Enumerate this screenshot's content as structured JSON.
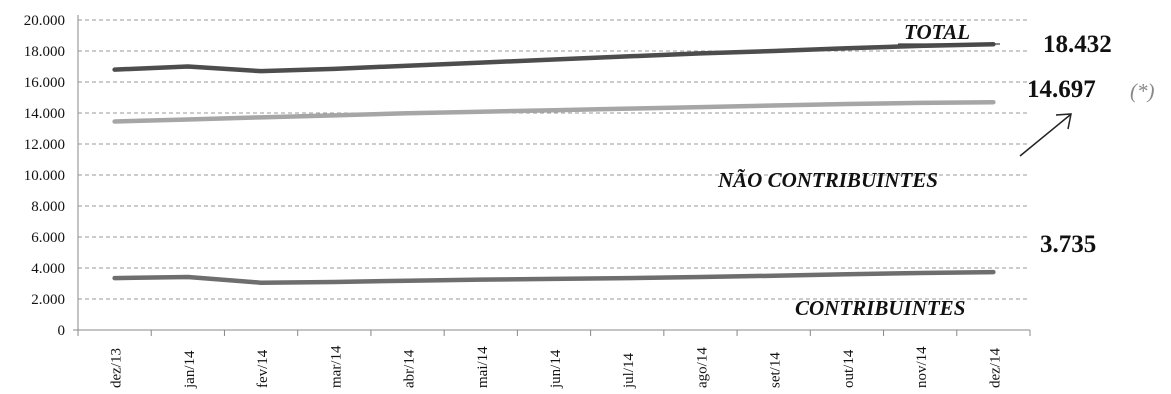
{
  "chart_data": {
    "type": "line",
    "categories": [
      "dez/13",
      "jan/14",
      "fev/14",
      "mar/14",
      "abr/14",
      "mai/14",
      "jun/14",
      "jul/14",
      "ago/14",
      "set/14",
      "out/14",
      "nov/14",
      "dez/14"
    ],
    "ylim": [
      0,
      20000
    ],
    "yticks": [
      "0",
      "2.000",
      "4.000",
      "6.000",
      "8.000",
      "10.000",
      "12.000",
      "14.000",
      "16.000",
      "18.000",
      "20.000"
    ],
    "grid": true,
    "series": [
      {
        "name": "TOTAL",
        "values": [
          16800,
          17000,
          16700,
          16850,
          17050,
          17250,
          17450,
          17650,
          17850,
          18000,
          18180,
          18330,
          18432
        ],
        "color": "#4d4d4d",
        "end_label": "18.432"
      },
      {
        "name": "NÃO CONTRIBUINTES",
        "values": [
          13450,
          13580,
          13720,
          13850,
          13980,
          14080,
          14180,
          14280,
          14380,
          14480,
          14580,
          14650,
          14697
        ],
        "color": "#a6a6a6",
        "end_label": "14.697"
      },
      {
        "name": "CONTRIBUINTES",
        "values": [
          3350,
          3420,
          3050,
          3100,
          3180,
          3250,
          3300,
          3350,
          3420,
          3500,
          3600,
          3680,
          3735
        ],
        "color": "#6e6e6e",
        "end_label": "3.735"
      }
    ],
    "annotation": "(*)"
  }
}
